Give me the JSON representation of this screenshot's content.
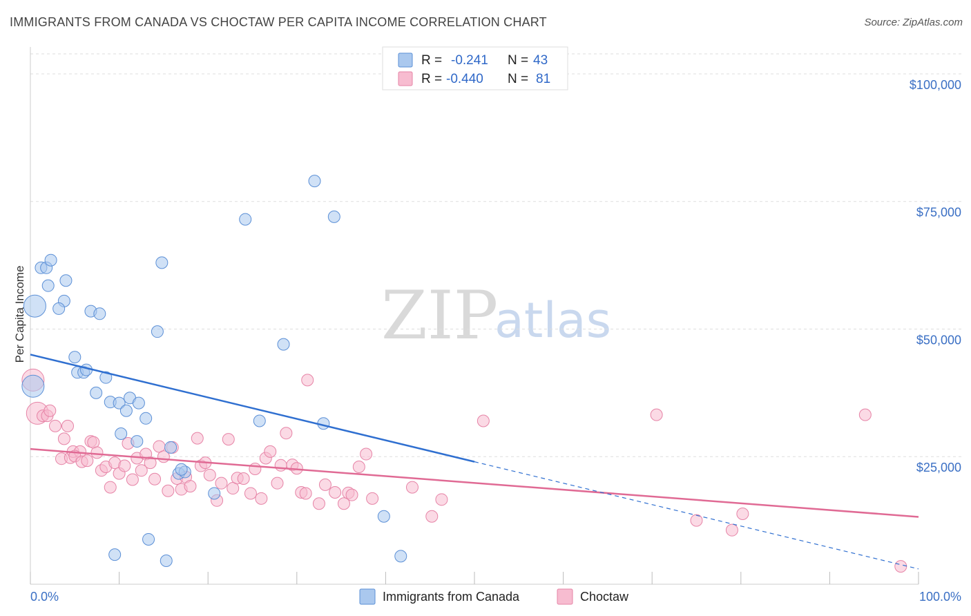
{
  "header": {
    "title": "IMMIGRANTS FROM CANADA VS CHOCTAW PER CAPITA INCOME CORRELATION CHART",
    "source": "Source: ZipAtlas.com"
  },
  "watermark": {
    "zip": "ZIP",
    "atlas": "atlas"
  },
  "colors": {
    "blue_fill": "#aac8ee",
    "blue_stroke": "#5b8fd6",
    "blue_line": "#2f6fd0",
    "pink_fill": "#f7bcd0",
    "pink_stroke": "#e683a6",
    "pink_line": "#e06a94",
    "grid": "#dddddd",
    "axis_text": "#3a6fc4"
  },
  "legend": {
    "rows": [
      {
        "r_label": "R =",
        "r_value": "-0.241",
        "n_label": "N =",
        "n_value": "43"
      },
      {
        "r_label": "R =",
        "r_value": "-0.440",
        "n_label": "N =",
        "n_value": "81"
      }
    ]
  },
  "chart_data": {
    "type": "scatter",
    "title": "IMMIGRANTS FROM CANADA VS CHOCTAW PER CAPITA INCOME CORRELATION CHART",
    "xlabel": "",
    "ylabel": "Per Capita Income",
    "xlim": [
      0,
      100
    ],
    "ylim": [
      0,
      105000
    ],
    "x_tick_labels": [
      "0.0%",
      "100.0%"
    ],
    "y_ticks": [
      25000,
      50000,
      75000,
      100000
    ],
    "y_tick_labels": [
      "$25,000",
      "$50,000",
      "$75,000",
      "$100,000"
    ],
    "grid": true,
    "legend_position": "bottom",
    "series": [
      {
        "name": "Immigrants from Canada",
        "color": "#aac8ee",
        "r": -0.241,
        "n": 43,
        "trend": {
          "x": [
            0,
            50
          ],
          "y": [
            45000,
            24000
          ]
        },
        "trend_extension": {
          "x": [
            50,
            100
          ],
          "y": [
            24000,
            3000
          ]
        },
        "points": [
          [
            0.5,
            54500
          ],
          [
            1.2,
            62000
          ],
          [
            1.8,
            62000
          ],
          [
            2.3,
            63500
          ],
          [
            2.0,
            58500
          ],
          [
            4.0,
            59500
          ],
          [
            3.8,
            55500
          ],
          [
            3.2,
            54000
          ],
          [
            6.8,
            53500
          ],
          [
            7.8,
            53000
          ],
          [
            14.8,
            63000
          ],
          [
            14.3,
            49500
          ],
          [
            24.2,
            71500
          ],
          [
            32.0,
            79000
          ],
          [
            34.2,
            72000
          ],
          [
            28.5,
            47000
          ],
          [
            5.0,
            44500
          ],
          [
            5.3,
            41500
          ],
          [
            6.0,
            41500
          ],
          [
            6.3,
            42000
          ],
          [
            8.5,
            40500
          ],
          [
            7.4,
            37500
          ],
          [
            9.0,
            35700
          ],
          [
            10.0,
            35500
          ],
          [
            11.2,
            36500
          ],
          [
            12.2,
            35500
          ],
          [
            10.8,
            34000
          ],
          [
            13.0,
            32500
          ],
          [
            10.2,
            29500
          ],
          [
            12.0,
            28000
          ],
          [
            15.8,
            26800
          ],
          [
            16.7,
            21700
          ],
          [
            17.4,
            22000
          ],
          [
            25.8,
            32000
          ],
          [
            33.0,
            31500
          ],
          [
            20.7,
            17800
          ],
          [
            39.8,
            13300
          ],
          [
            9.5,
            5800
          ],
          [
            13.3,
            8800
          ],
          [
            15.3,
            4600
          ],
          [
            41.7,
            5500
          ],
          [
            0.3,
            38800
          ],
          [
            17.0,
            22500
          ]
        ]
      },
      {
        "name": "Choctaw",
        "color": "#f7bcd0",
        "r": -0.44,
        "n": 81,
        "trend": {
          "x": [
            0,
            100
          ],
          "y": [
            26500,
            13200
          ]
        },
        "points": [
          [
            0.3,
            40000
          ],
          [
            0.8,
            33500
          ],
          [
            1.4,
            33000
          ],
          [
            1.9,
            33000
          ],
          [
            2.2,
            34000
          ],
          [
            2.8,
            31000
          ],
          [
            3.5,
            24600
          ],
          [
            3.8,
            28500
          ],
          [
            4.2,
            31000
          ],
          [
            4.5,
            24800
          ],
          [
            4.8,
            26000
          ],
          [
            5.6,
            26000
          ],
          [
            5.0,
            25100
          ],
          [
            5.8,
            24000
          ],
          [
            6.4,
            24200
          ],
          [
            6.8,
            28000
          ],
          [
            7.1,
            27800
          ],
          [
            7.5,
            25800
          ],
          [
            8.0,
            22300
          ],
          [
            8.5,
            23000
          ],
          [
            9.0,
            19000
          ],
          [
            9.5,
            23800
          ],
          [
            10.0,
            21700
          ],
          [
            10.6,
            23200
          ],
          [
            11.0,
            27600
          ],
          [
            11.5,
            20500
          ],
          [
            12.0,
            24700
          ],
          [
            12.5,
            22300
          ],
          [
            13.0,
            25500
          ],
          [
            13.5,
            23800
          ],
          [
            14.0,
            20600
          ],
          [
            14.5,
            27000
          ],
          [
            15.0,
            25000
          ],
          [
            15.5,
            18300
          ],
          [
            16.0,
            26800
          ],
          [
            16.5,
            20700
          ],
          [
            17.0,
            18600
          ],
          [
            17.5,
            21000
          ],
          [
            18.0,
            19200
          ],
          [
            18.8,
            28600
          ],
          [
            19.2,
            23200
          ],
          [
            19.7,
            23800
          ],
          [
            20.2,
            21400
          ],
          [
            21.0,
            16400
          ],
          [
            21.5,
            19800
          ],
          [
            22.3,
            28400
          ],
          [
            22.8,
            18800
          ],
          [
            23.3,
            20800
          ],
          [
            24.0,
            20700
          ],
          [
            24.8,
            17800
          ],
          [
            25.3,
            22600
          ],
          [
            26.0,
            16800
          ],
          [
            26.5,
            24700
          ],
          [
            27.0,
            26000
          ],
          [
            27.8,
            19800
          ],
          [
            28.2,
            23300
          ],
          [
            28.8,
            29600
          ],
          [
            29.5,
            23400
          ],
          [
            30.0,
            22700
          ],
          [
            30.5,
            18000
          ],
          [
            31.0,
            17800
          ],
          [
            32.5,
            15800
          ],
          [
            33.2,
            19500
          ],
          [
            34.3,
            18000
          ],
          [
            35.3,
            15800
          ],
          [
            35.8,
            17900
          ],
          [
            36.2,
            17500
          ],
          [
            37.0,
            23000
          ],
          [
            37.8,
            25500
          ],
          [
            38.5,
            16800
          ],
          [
            31.2,
            40000
          ],
          [
            43.0,
            19000
          ],
          [
            45.2,
            13300
          ],
          [
            46.3,
            16600
          ],
          [
            51.0,
            32000
          ],
          [
            70.5,
            33200
          ],
          [
            75.0,
            12500
          ],
          [
            80.2,
            13800
          ],
          [
            79.0,
            10600
          ],
          [
            94.0,
            33200
          ],
          [
            98.0,
            3500
          ]
        ]
      }
    ]
  },
  "bottom_legend": {
    "items": [
      {
        "label": "Immigrants from Canada"
      },
      {
        "label": "Choctaw"
      }
    ]
  }
}
